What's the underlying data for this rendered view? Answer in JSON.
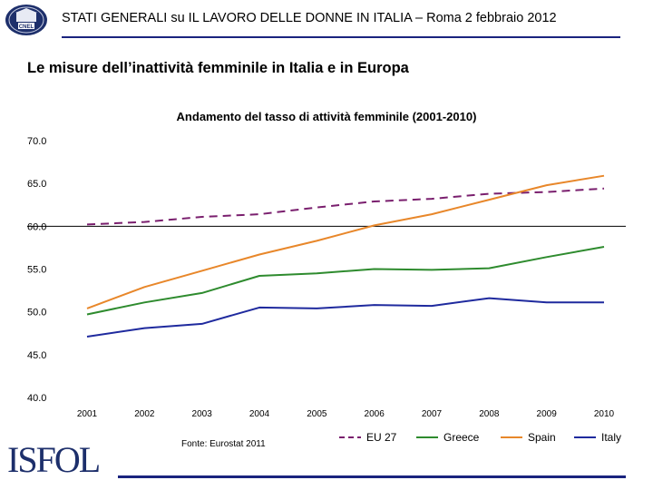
{
  "header": {
    "title": "STATI GENERALI su IL LAVORO DELLE DONNE IN ITALIA – Roma 2 febbraio 2012",
    "seal_text": "CNEL"
  },
  "subtitle": "Le misure dell’inattività femminile in Italia e in Europa",
  "logo": {
    "text": "ISFOL"
  },
  "chart_data": {
    "type": "line",
    "title": "Andamento del tasso di attività femminile (2001-2010)",
    "source": "Fonte: Eurostat 2011",
    "x": [
      "2001",
      "2002",
      "2003",
      "2004",
      "2005",
      "2006",
      "2007",
      "2008",
      "2009",
      "2010"
    ],
    "ylim": [
      40.0,
      70.0
    ],
    "yticks": [
      "70.0",
      "65.0",
      "60.0",
      "55.0",
      "50.0",
      "45.0",
      "40.0"
    ],
    "legend_position": "bottom",
    "series": [
      {
        "name": "EU 27",
        "color": "#7a1f6e",
        "dashed": true,
        "values": [
          60.2,
          60.5,
          61.1,
          61.4,
          62.2,
          62.9,
          63.2,
          63.8,
          64.0,
          64.4
        ]
      },
      {
        "name": "Greece",
        "color": "#2e8b2e",
        "dashed": false,
        "values": [
          49.7,
          51.1,
          52.2,
          54.2,
          54.5,
          55.0,
          54.9,
          55.1,
          56.4,
          57.6
        ]
      },
      {
        "name": "Spain",
        "color": "#e8872a",
        "dashed": false,
        "values": [
          50.4,
          52.9,
          54.8,
          56.7,
          58.3,
          60.1,
          61.4,
          63.1,
          64.8,
          65.9
        ]
      },
      {
        "name": "Italy",
        "color": "#1f2a9e",
        "dashed": false,
        "values": [
          47.1,
          48.1,
          48.6,
          50.5,
          50.4,
          50.8,
          50.7,
          51.6,
          51.1,
          51.1
        ]
      }
    ]
  }
}
